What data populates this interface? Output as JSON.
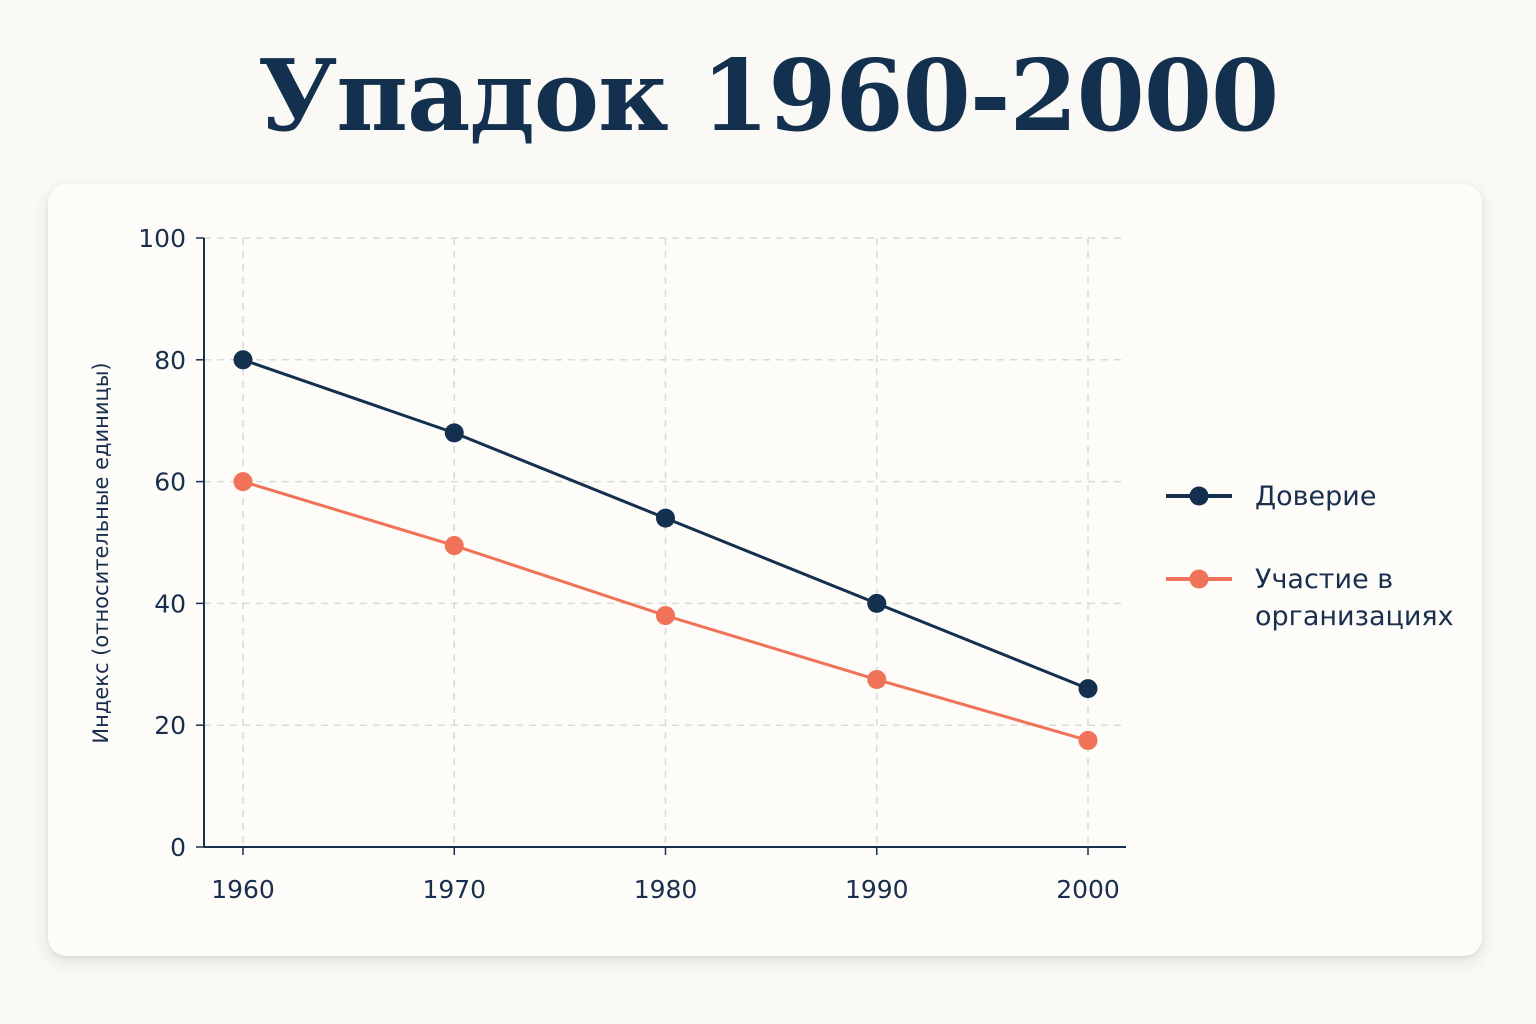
{
  "chart_data": {
    "type": "line",
    "title": "Упадок 1960-2000",
    "ylabel": "Индекс (относительные единицы)",
    "xlabel": "",
    "x": [
      1960,
      1970,
      1980,
      1990,
      2000
    ],
    "x_tick_labels": [
      "1960",
      "1970",
      "1980",
      "1990",
      "2000"
    ],
    "ylim": [
      0,
      100
    ],
    "y_ticks": [
      0,
      20,
      40,
      60,
      80,
      100
    ],
    "y_tick_labels": [
      "0",
      "20",
      "40",
      "60",
      "80",
      "100"
    ],
    "grid": true,
    "legend_position": "right",
    "series": [
      {
        "name": "Доверие",
        "name_lines": [
          "Доверие"
        ],
        "color": "#13304f",
        "values": [
          80,
          68,
          54,
          40,
          26
        ]
      },
      {
        "name": "Участие в организациях",
        "name_lines": [
          "Участие в",
          "организациях"
        ],
        "color": "#f07258",
        "values": [
          60,
          49.5,
          38,
          27.5,
          17.5
        ]
      }
    ]
  }
}
